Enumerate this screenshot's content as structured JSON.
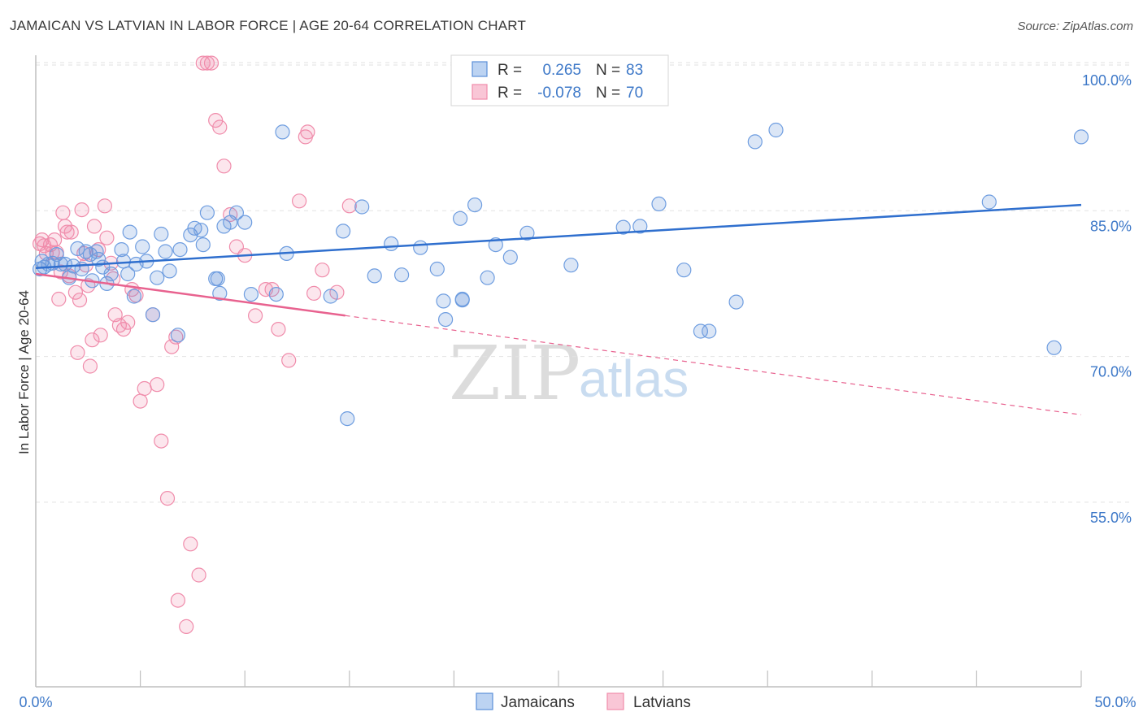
{
  "title": "JAMAICAN VS LATVIAN IN LABOR FORCE | AGE 20-64 CORRELATION CHART",
  "source": "Source: ZipAtlas.com",
  "watermark": {
    "zip": "ZIP",
    "atlas": "atlas"
  },
  "colors": {
    "jamaicans": "#5b8fd8",
    "latvians": "#f08cab",
    "blue_line": "#2f6fce",
    "pink_line": "#e8628f",
    "tick_text": "#3d78c8"
  },
  "legend": {
    "rows": [
      {
        "r_label": "R =",
        "r_value": "0.265",
        "n_label": "N =",
        "n_value": "83"
      },
      {
        "r_label": "R =",
        "r_value": "-0.078",
        "n_label": "N =",
        "n_value": "70"
      }
    ]
  },
  "bottom_legend": {
    "jamaicans": "Jamaicans",
    "latvians": "Latvians"
  },
  "chart_data": {
    "type": "scatter",
    "title": "JAMAICAN VS LATVIAN IN LABOR FORCE | AGE 20-64 CORRELATION CHART",
    "xlabel": "",
    "ylabel": "In Labor Force | Age 20-64",
    "xlim": [
      0,
      50
    ],
    "ylim": [
      36,
      101
    ],
    "x_tick_labels": {
      "left": "0.0%",
      "right": "50.0%"
    },
    "y_ticks": [
      {
        "value": 100,
        "label": "100.0%"
      },
      {
        "value": 85,
        "label": "85.0%"
      },
      {
        "value": 70,
        "label": "70.0%"
      },
      {
        "value": 55,
        "label": "55.0%"
      }
    ],
    "grid": true,
    "series": [
      {
        "name": "Jamaicans",
        "r": 0.265,
        "n": 83,
        "trend": {
          "x1": 0,
          "y1": 79.1,
          "x2": 50,
          "y2": 85.6,
          "solid_to": 50
        },
        "points": [
          [
            0.2,
            79.0
          ],
          [
            0.3,
            79.8
          ],
          [
            0.4,
            79.2
          ],
          [
            0.6,
            79.5
          ],
          [
            0.8,
            79.6
          ],
          [
            1.0,
            80.5
          ],
          [
            1.2,
            79.5
          ],
          [
            1.4,
            79.5
          ],
          [
            1.6,
            78.1
          ],
          [
            1.8,
            79.3
          ],
          [
            2.0,
            81.1
          ],
          [
            2.2,
            79.0
          ],
          [
            2.4,
            80.8
          ],
          [
            2.6,
            80.5
          ],
          [
            2.7,
            77.8
          ],
          [
            2.9,
            80.8
          ],
          [
            3.0,
            80.0
          ],
          [
            3.2,
            79.2
          ],
          [
            3.4,
            77.5
          ],
          [
            3.6,
            78.5
          ],
          [
            4.1,
            81.0
          ],
          [
            4.2,
            79.8
          ],
          [
            4.4,
            78.5
          ],
          [
            4.5,
            82.8
          ],
          [
            4.7,
            76.2
          ],
          [
            4.8,
            79.5
          ],
          [
            5.1,
            81.3
          ],
          [
            5.3,
            79.8
          ],
          [
            5.6,
            74.3
          ],
          [
            5.8,
            78.1
          ],
          [
            6.0,
            82.6
          ],
          [
            6.2,
            80.8
          ],
          [
            6.4,
            78.8
          ],
          [
            6.8,
            72.2
          ],
          [
            6.9,
            81.0
          ],
          [
            7.4,
            82.5
          ],
          [
            7.6,
            83.2
          ],
          [
            7.9,
            83.0
          ],
          [
            8.0,
            81.5
          ],
          [
            8.2,
            84.8
          ],
          [
            8.6,
            78.0
          ],
          [
            8.7,
            78.0
          ],
          [
            8.8,
            76.5
          ],
          [
            9.0,
            83.4
          ],
          [
            9.3,
            83.8
          ],
          [
            9.6,
            84.8
          ],
          [
            10.0,
            83.8
          ],
          [
            10.3,
            76.4
          ],
          [
            11.5,
            76.4
          ],
          [
            11.8,
            93.1
          ],
          [
            12.0,
            80.6
          ],
          [
            14.1,
            76.2
          ],
          [
            14.7,
            82.9
          ],
          [
            14.9,
            63.6
          ],
          [
            15.6,
            85.4
          ],
          [
            16.2,
            78.3
          ],
          [
            17.0,
            81.6
          ],
          [
            17.5,
            78.4
          ],
          [
            18.4,
            81.2
          ],
          [
            19.2,
            79.0
          ],
          [
            19.5,
            75.7
          ],
          [
            19.6,
            73.8
          ],
          [
            20.3,
            84.2
          ],
          [
            20.4,
            75.9
          ],
          [
            20.4,
            75.8
          ],
          [
            21.0,
            85.6
          ],
          [
            21.6,
            78.1
          ],
          [
            22.0,
            81.5
          ],
          [
            22.7,
            80.2
          ],
          [
            23.5,
            82.7
          ],
          [
            25.6,
            79.4
          ],
          [
            28.1,
            83.3
          ],
          [
            28.9,
            83.4
          ],
          [
            29.8,
            85.7
          ],
          [
            31.0,
            78.9
          ],
          [
            31.8,
            72.6
          ],
          [
            32.2,
            72.6
          ],
          [
            33.5,
            75.6
          ],
          [
            34.4,
            92.1
          ],
          [
            35.4,
            93.3
          ],
          [
            45.6,
            85.9
          ],
          [
            48.7,
            70.9
          ],
          [
            50.0,
            92.6
          ]
        ]
      },
      {
        "name": "Latvians",
        "r": -0.078,
        "n": 70,
        "trend": {
          "x1": 0,
          "y1": 78.5,
          "x2": 50,
          "y2": 64.0,
          "solid_to": 14.8
        },
        "points": [
          [
            0.2,
            81.6
          ],
          [
            0.3,
            82.0
          ],
          [
            0.4,
            81.4
          ],
          [
            0.5,
            80.6
          ],
          [
            0.7,
            81.5
          ],
          [
            0.8,
            80.7
          ],
          [
            0.9,
            82.0
          ],
          [
            1.0,
            80.7
          ],
          [
            1.1,
            75.9
          ],
          [
            1.2,
            78.7
          ],
          [
            1.3,
            84.8
          ],
          [
            1.4,
            83.4
          ],
          [
            1.5,
            82.8
          ],
          [
            1.6,
            78.3
          ],
          [
            1.7,
            82.8
          ],
          [
            1.9,
            76.6
          ],
          [
            2.0,
            70.4
          ],
          [
            2.1,
            75.8
          ],
          [
            2.2,
            85.1
          ],
          [
            2.3,
            80.6
          ],
          [
            2.4,
            79.4
          ],
          [
            2.5,
            77.3
          ],
          [
            2.6,
            69.0
          ],
          [
            2.7,
            71.7
          ],
          [
            2.8,
            83.4
          ],
          [
            3.0,
            81.0
          ],
          [
            3.1,
            72.2
          ],
          [
            3.3,
            85.5
          ],
          [
            3.4,
            82.2
          ],
          [
            3.6,
            79.6
          ],
          [
            3.7,
            78.0
          ],
          [
            3.8,
            74.3
          ],
          [
            4.0,
            73.2
          ],
          [
            4.2,
            72.8
          ],
          [
            4.4,
            73.5
          ],
          [
            4.6,
            76.9
          ],
          [
            4.8,
            76.3
          ],
          [
            5.0,
            65.4
          ],
          [
            5.2,
            66.7
          ],
          [
            5.6,
            74.3
          ],
          [
            5.8,
            67.1
          ],
          [
            6.0,
            61.3
          ],
          [
            6.3,
            55.4
          ],
          [
            6.5,
            71.0
          ],
          [
            6.7,
            72.0
          ],
          [
            6.8,
            44.9
          ],
          [
            7.2,
            42.2
          ],
          [
            7.4,
            50.7
          ],
          [
            7.8,
            47.5
          ],
          [
            8.0,
            100.2
          ],
          [
            8.2,
            100.2
          ],
          [
            8.4,
            100.2
          ],
          [
            8.6,
            94.3
          ],
          [
            8.8,
            93.6
          ],
          [
            9.0,
            89.6
          ],
          [
            9.3,
            84.6
          ],
          [
            9.6,
            81.3
          ],
          [
            10.0,
            80.4
          ],
          [
            10.5,
            74.2
          ],
          [
            11.0,
            76.9
          ],
          [
            11.3,
            76.9
          ],
          [
            11.6,
            72.8
          ],
          [
            12.1,
            69.6
          ],
          [
            12.6,
            86.0
          ],
          [
            12.9,
            92.6
          ],
          [
            13.0,
            93.1
          ],
          [
            13.3,
            76.5
          ],
          [
            13.7,
            78.9
          ],
          [
            14.4,
            76.6
          ],
          [
            15.0,
            85.5
          ]
        ]
      }
    ]
  }
}
